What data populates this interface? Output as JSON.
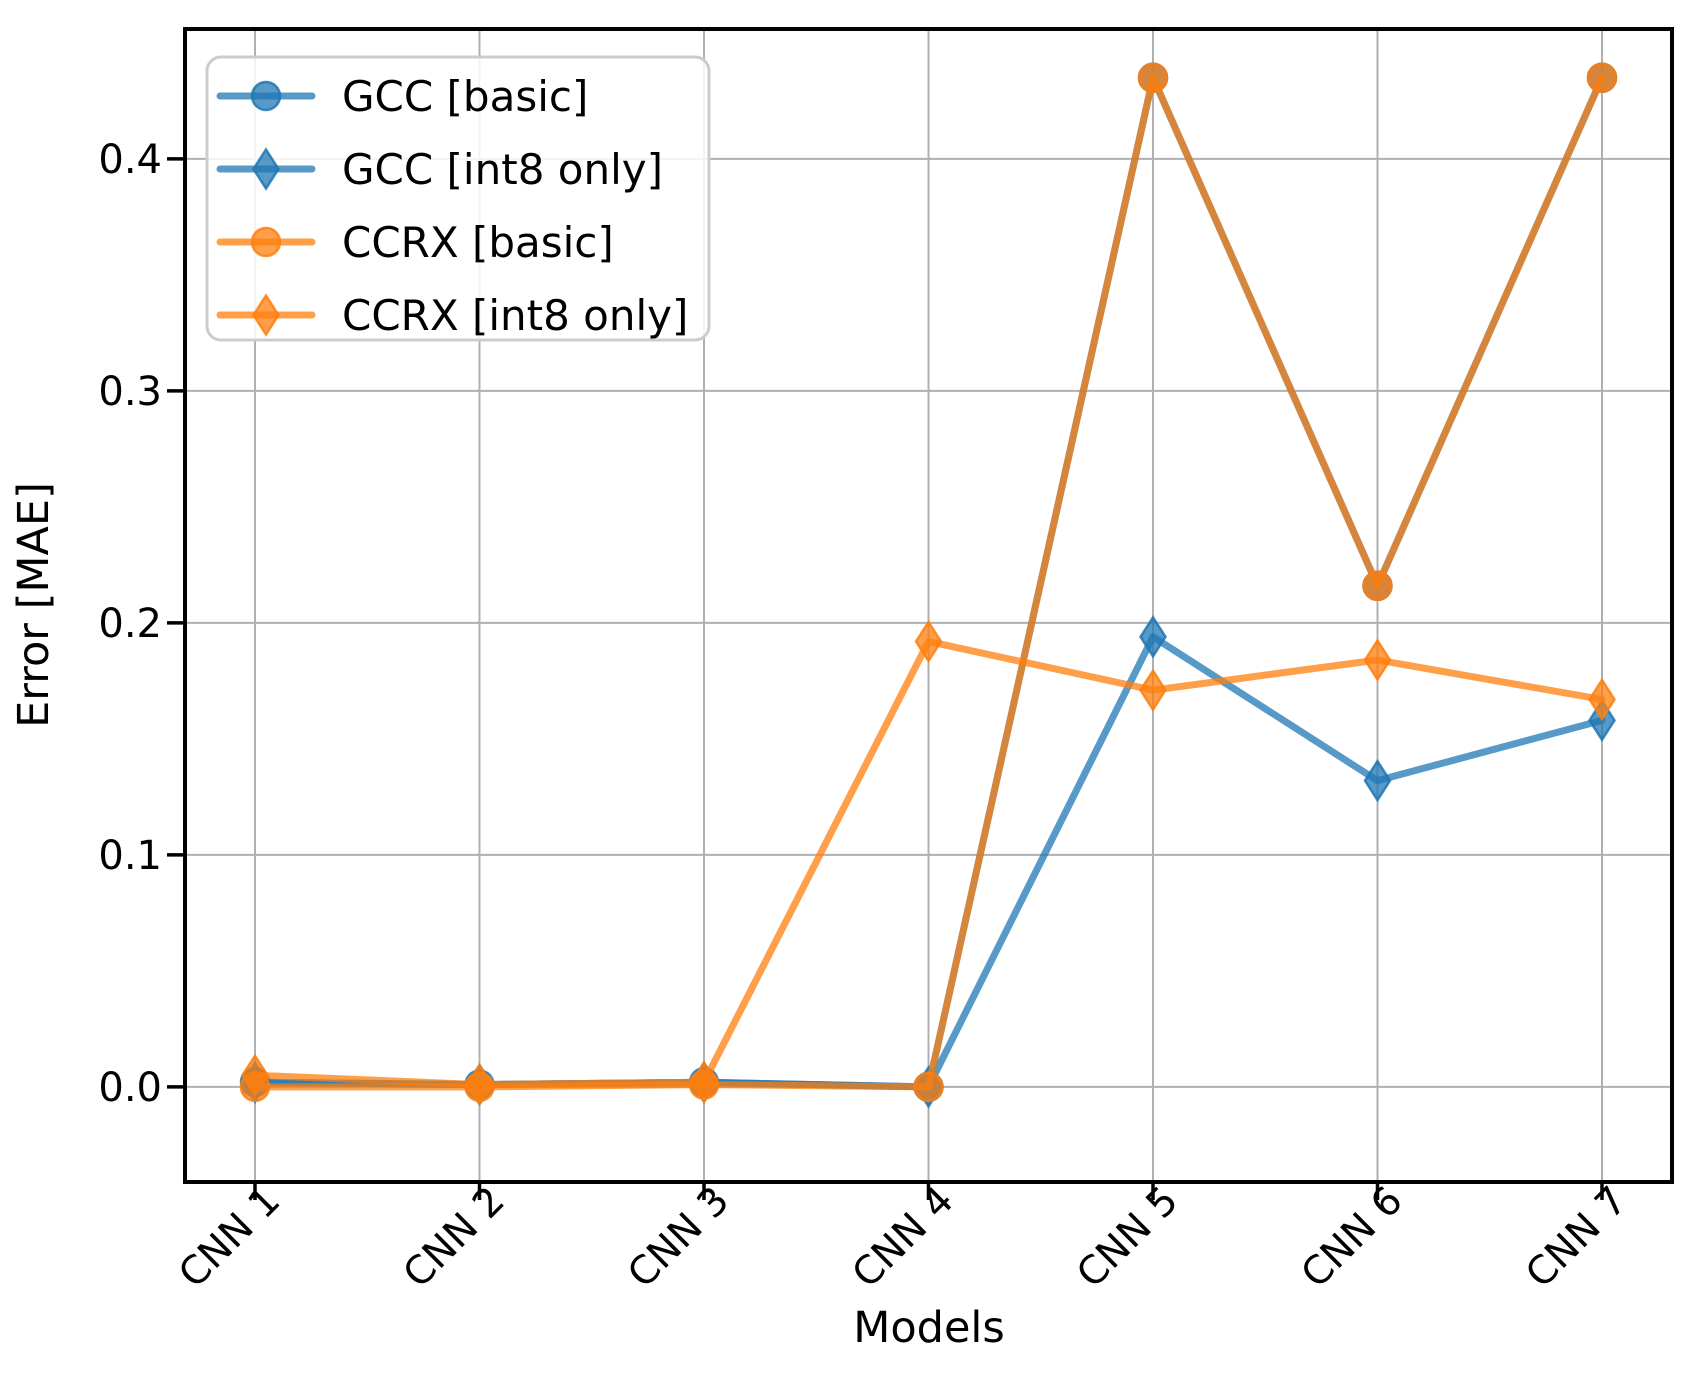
{
  "figure": {
    "background": "#ffffff"
  },
  "chart_data": {
    "type": "line",
    "title": "",
    "xlabel": "Models",
    "ylabel": "Error [MAE]",
    "categories": [
      "CNN 1",
      "CNN 2",
      "CNN 3",
      "CNN 4",
      "CNN 5",
      "CNN 6",
      "CNN 7"
    ],
    "ylim": [
      -0.041,
      0.456
    ],
    "yticks": [
      {
        "value": 0.0,
        "label": "0.0"
      },
      {
        "value": 0.1,
        "label": "0.1"
      },
      {
        "value": 0.2,
        "label": "0.2"
      },
      {
        "value": 0.3,
        "label": "0.3"
      },
      {
        "value": 0.4,
        "label": "0.4"
      }
    ],
    "grid": true,
    "grid_color": "#b0b0b0",
    "axis_color": "#000000",
    "legend_position": "upper-left",
    "legend_border_color": "#cccccc",
    "legend_background": "#ffffff",
    "series_opacity": 0.75,
    "series": [
      {
        "name": "GCC [basic]",
        "color": "#1f77b4",
        "marker": "circle",
        "values": [
          0.002,
          0.001,
          0.002,
          0.0,
          0.435,
          0.216,
          0.435
        ]
      },
      {
        "name": "GCC [int8 only]",
        "color": "#1f77b4",
        "marker": "diamond",
        "values": [
          0.002,
          0.001,
          0.002,
          0.0,
          0.194,
          0.132,
          0.158
        ]
      },
      {
        "name": "CCRX [basic]",
        "color": "#ff7f0e",
        "marker": "circle",
        "values": [
          0.0,
          0.0,
          0.001,
          0.0,
          0.435,
          0.216,
          0.435
        ]
      },
      {
        "name": "CCRX [int8 only]",
        "color": "#ff7f0e",
        "marker": "diamond",
        "values": [
          0.005,
          0.001,
          0.002,
          0.192,
          0.171,
          0.184,
          0.167
        ]
      }
    ]
  }
}
